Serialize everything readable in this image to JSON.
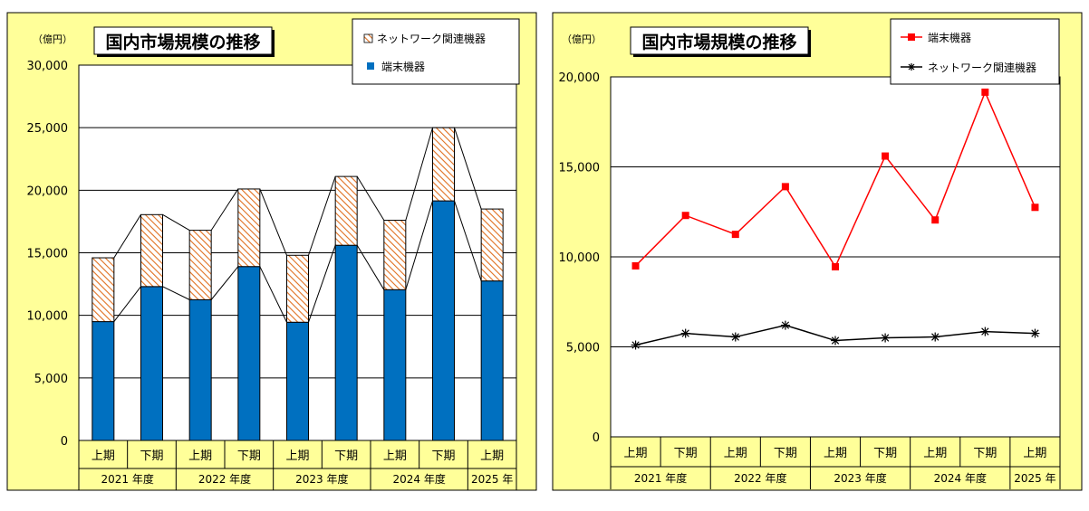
{
  "colors": {
    "panel_bg": "#ffff99",
    "plot_bg": "#ffffff",
    "bar_blue": "#0070c0",
    "hatch": "#e07020",
    "red": "#ff0000",
    "black": "#000000"
  },
  "chart_data": [
    {
      "type": "bar",
      "stacked": true,
      "title": "国内市場規模の推移",
      "ylabel": "（億円）",
      "ylim": [
        0,
        30000
      ],
      "yticks": [
        "0",
        "5,000",
        "10,000",
        "15,000",
        "20,000",
        "25,000",
        "30,000"
      ],
      "categories": [
        "上期",
        "下期",
        "上期",
        "下期",
        "上期",
        "下期",
        "上期",
        "下期",
        "上期"
      ],
      "year_groups": [
        {
          "label": "2021 年度",
          "span": 2
        },
        {
          "label": "2022 年度",
          "span": 2
        },
        {
          "label": "2023 年度",
          "span": 2
        },
        {
          "label": "2024 年度",
          "span": 2
        },
        {
          "label": "2025 年",
          "span": 1
        }
      ],
      "series": [
        {
          "name": "端末機器",
          "values": [
            9500,
            12300,
            11250,
            13900,
            9450,
            15600,
            12050,
            19150,
            12750
          ]
        },
        {
          "name": "ネットワーク関連機器",
          "values": [
            5100,
            5750,
            5550,
            6200,
            5350,
            5500,
            5550,
            5850,
            5750
          ]
        }
      ],
      "legend": [
        "ネットワーク関連機器",
        "端末機器"
      ],
      "legend_position": "top-right",
      "grid": true
    },
    {
      "type": "line",
      "title": "国内市場規模の推移",
      "ylabel": "（億円）",
      "ylim": [
        0,
        20000
      ],
      "yticks": [
        "0",
        "5,000",
        "10,000",
        "15,000",
        "20,000"
      ],
      "categories": [
        "上期",
        "下期",
        "上期",
        "下期",
        "上期",
        "下期",
        "上期",
        "下期",
        "上期"
      ],
      "year_groups": [
        {
          "label": "2021 年度",
          "span": 2
        },
        {
          "label": "2022 年度",
          "span": 2
        },
        {
          "label": "2023 年度",
          "span": 2
        },
        {
          "label": "2024 年度",
          "span": 2
        },
        {
          "label": "2025 年",
          "span": 1
        }
      ],
      "series": [
        {
          "name": "端末機器",
          "values": [
            9500,
            12300,
            11250,
            13900,
            9450,
            15600,
            12050,
            19150,
            12750
          ]
        },
        {
          "name": "ネットワーク関連機器",
          "values": [
            5100,
            5750,
            5550,
            6200,
            5350,
            5500,
            5550,
            5850,
            5750
          ]
        }
      ],
      "legend": [
        "端末機器",
        "ネットワーク関連機器"
      ],
      "legend_position": "top-right",
      "grid": true
    }
  ]
}
